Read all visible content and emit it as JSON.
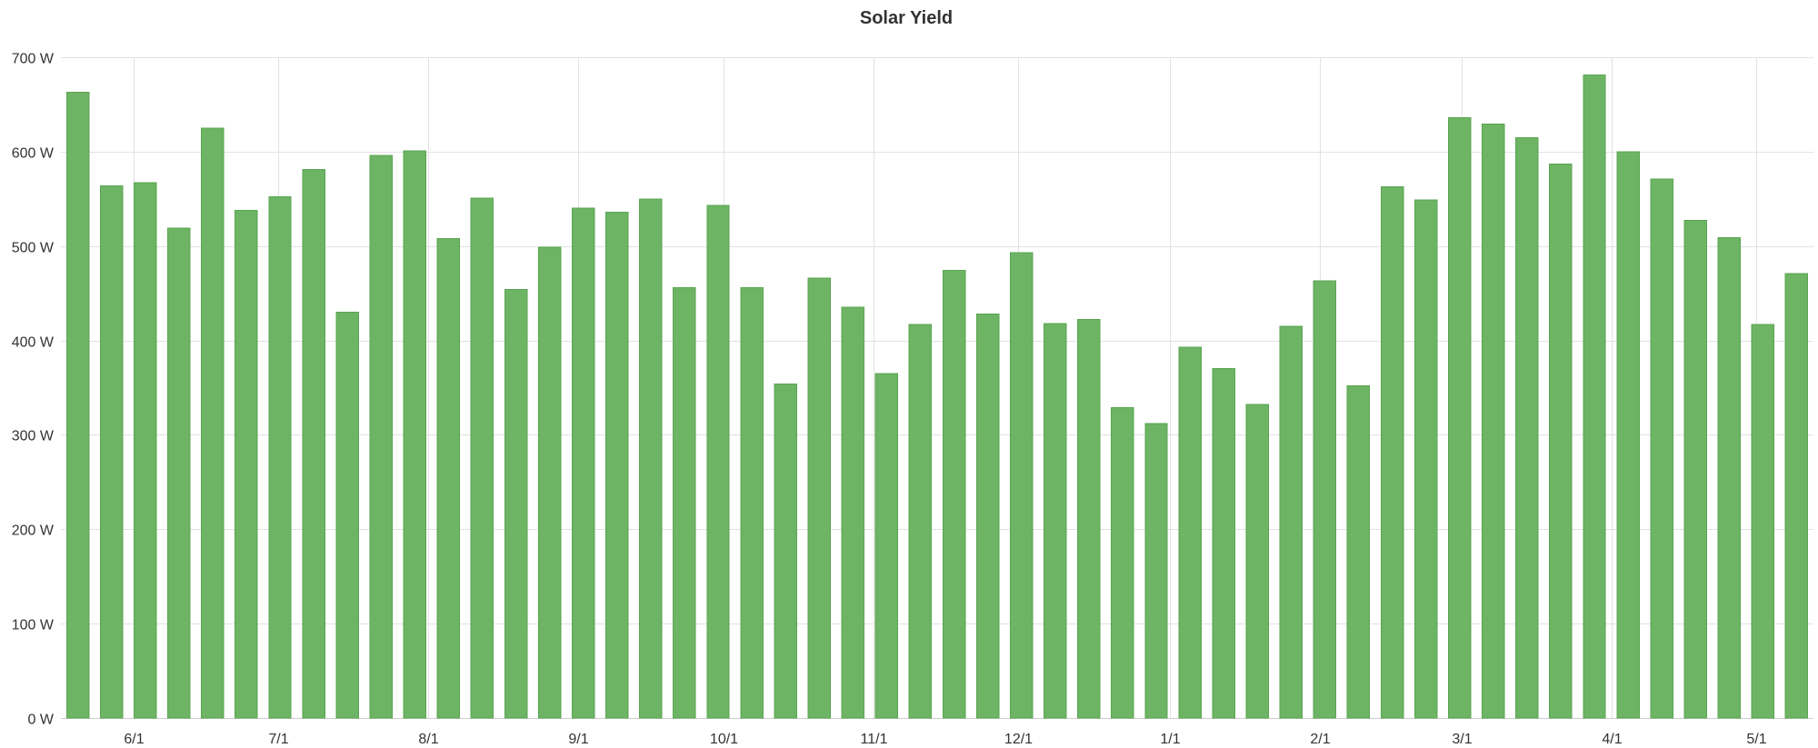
{
  "chart_data": {
    "type": "bar",
    "title": "Solar Yield",
    "xlabel": "",
    "ylabel": "",
    "y_unit": "W",
    "ylim": [
      0,
      700
    ],
    "y_ticks": [
      0,
      100,
      200,
      300,
      400,
      500,
      600,
      700
    ],
    "y_tick_labels": [
      "0 W",
      "100 W",
      "200 W",
      "300 W",
      "400 W",
      "500 W",
      "600 W",
      "700 W"
    ],
    "x_tick_labels": [
      "6/1",
      "7/1",
      "8/1",
      "9/1",
      "10/1",
      "11/1",
      "12/1",
      "1/1",
      "2/1",
      "3/1",
      "4/1",
      "5/1"
    ],
    "x_tick_bar_index": [
      1.65,
      5.95,
      10.4,
      14.85,
      19.15,
      23.6,
      27.9,
      32.4,
      36.85,
      41.05,
      45.5,
      49.8
    ],
    "grid": true,
    "legend": "none",
    "bar_color": "#6db464",
    "bar_border_color": "#5aa551",
    "values": [
      663,
      564,
      567,
      519,
      625,
      538,
      552,
      581,
      430,
      596,
      601,
      508,
      551,
      454,
      499,
      540,
      536,
      550,
      456,
      543,
      456,
      354,
      466,
      435,
      365,
      417,
      474,
      428,
      493,
      418,
      422,
      329,
      312,
      393,
      370,
      332,
      415,
      463,
      352,
      563,
      549,
      636,
      629,
      615,
      587,
      681,
      600,
      571,
      527,
      509,
      417,
      471
    ]
  }
}
